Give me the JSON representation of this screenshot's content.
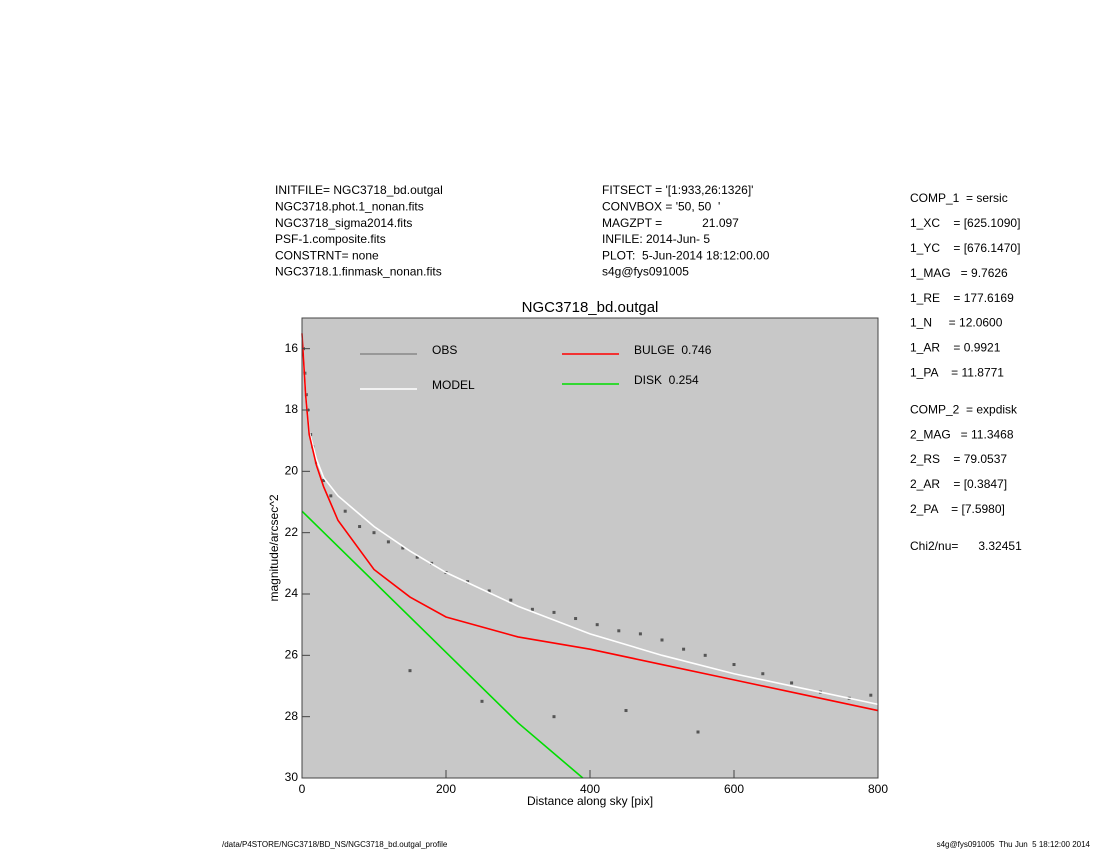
{
  "header_left": [
    "INITFILE= NGC3718_bd.outgal",
    "NGC3718.phot.1_nonan.fits",
    "NGC3718_sigma2014.fits",
    "PSF-1.composite.fits",
    "CONSTRNT= none",
    "NGC3718.1.finmask_nonan.fits"
  ],
  "header_middle": [
    "FITSECT = '[1:933,26:1326]'",
    "CONVBOX = '50, 50  '",
    "MAGZPT =            21.097",
    "INFILE: 2014-Jun- 5",
    "PLOT:  5-Jun-2014 18:12:00.00",
    "s4g@fys091005"
  ],
  "params": [
    "COMP_1  = sersic",
    "1_XC    = [625.1090]",
    "1_YC    = [676.1470]",
    "1_MAG   = 9.7626",
    "1_RE    = 177.6169",
    "1_N     = 12.0600",
    "1_AR    = 0.9921",
    "1_PA    = 11.8771",
    "COMP_2  = expdisk",
    "2_MAG   = 11.3468",
    "2_RS    = 79.0537",
    "2_AR    = [0.3847]",
    "2_PA    = [7.5980]",
    "Chi2/nu=      3.32451"
  ],
  "footer_left": "/data/P4STORE/NGC3718/BD_NS/NGC3718_bd.outgal_profile",
  "footer_right": "s4g@fys091005  Thu Jun  5 18:12:00 2014",
  "chart_data": {
    "type": "line",
    "title": "NGC3718_bd.outgal",
    "x_label": "Distance along sky [pix]",
    "y_label": "magnitude/arcsec^2",
    "xlim": [
      0,
      800
    ],
    "xticks": [
      0,
      200,
      400,
      600,
      800
    ],
    "ylim": [
      30,
      15
    ],
    "yticks": [
      16,
      18,
      20,
      22,
      24,
      26,
      28,
      30
    ],
    "series": [
      {
        "name": "OBS",
        "color": "#555555",
        "kind": "scatter",
        "x": [
          2,
          4,
          6,
          8,
          12,
          15,
          20,
          30,
          40,
          60,
          80,
          100,
          120,
          140,
          160,
          180,
          200,
          230,
          260,
          290,
          320,
          350,
          380,
          410,
          440,
          470,
          500,
          530,
          560,
          600,
          640,
          680,
          720,
          760,
          790,
          150,
          250,
          350,
          450,
          550
        ],
        "values": [
          16,
          16.8,
          17.5,
          18,
          18.8,
          19.2,
          19.7,
          20.3,
          20.8,
          21.3,
          21.8,
          22.0,
          22.3,
          22.5,
          22.8,
          23.0,
          23.3,
          23.6,
          23.9,
          24.2,
          24.5,
          24.6,
          24.8,
          25.0,
          25.2,
          25.3,
          25.5,
          25.8,
          26.0,
          26.3,
          26.6,
          26.9,
          27.2,
          27.4,
          27.3,
          26.5,
          27.5,
          28.0,
          27.8,
          28.5
        ]
      },
      {
        "name": "MODEL",
        "color": "#ffffff",
        "kind": "line",
        "x": [
          0,
          5,
          10,
          20,
          30,
          50,
          100,
          150,
          200,
          300,
          400,
          500,
          600,
          700,
          800
        ],
        "values": [
          15.5,
          17.5,
          18.7,
          19.6,
          20.2,
          20.8,
          21.8,
          22.6,
          23.3,
          24.4,
          25.3,
          26.0,
          26.6,
          27.1,
          27.6
        ]
      },
      {
        "name": "BULGE  0.746",
        "color": "#ff0000",
        "kind": "line",
        "x": [
          0,
          5,
          10,
          20,
          30,
          50,
          100,
          150,
          200,
          300,
          400,
          500,
          600,
          700,
          800
        ],
        "values": [
          15.5,
          17.5,
          18.8,
          19.8,
          20.5,
          21.6,
          23.2,
          24.1,
          24.75,
          25.4,
          25.8,
          26.3,
          26.8,
          27.3,
          27.8
        ]
      },
      {
        "name": "DISK  0.254",
        "color": "#00dd00",
        "kind": "line",
        "x": [
          0,
          100,
          200,
          300,
          390
        ],
        "values": [
          21.3,
          23.6,
          25.9,
          28.2,
          30
        ]
      }
    ]
  }
}
